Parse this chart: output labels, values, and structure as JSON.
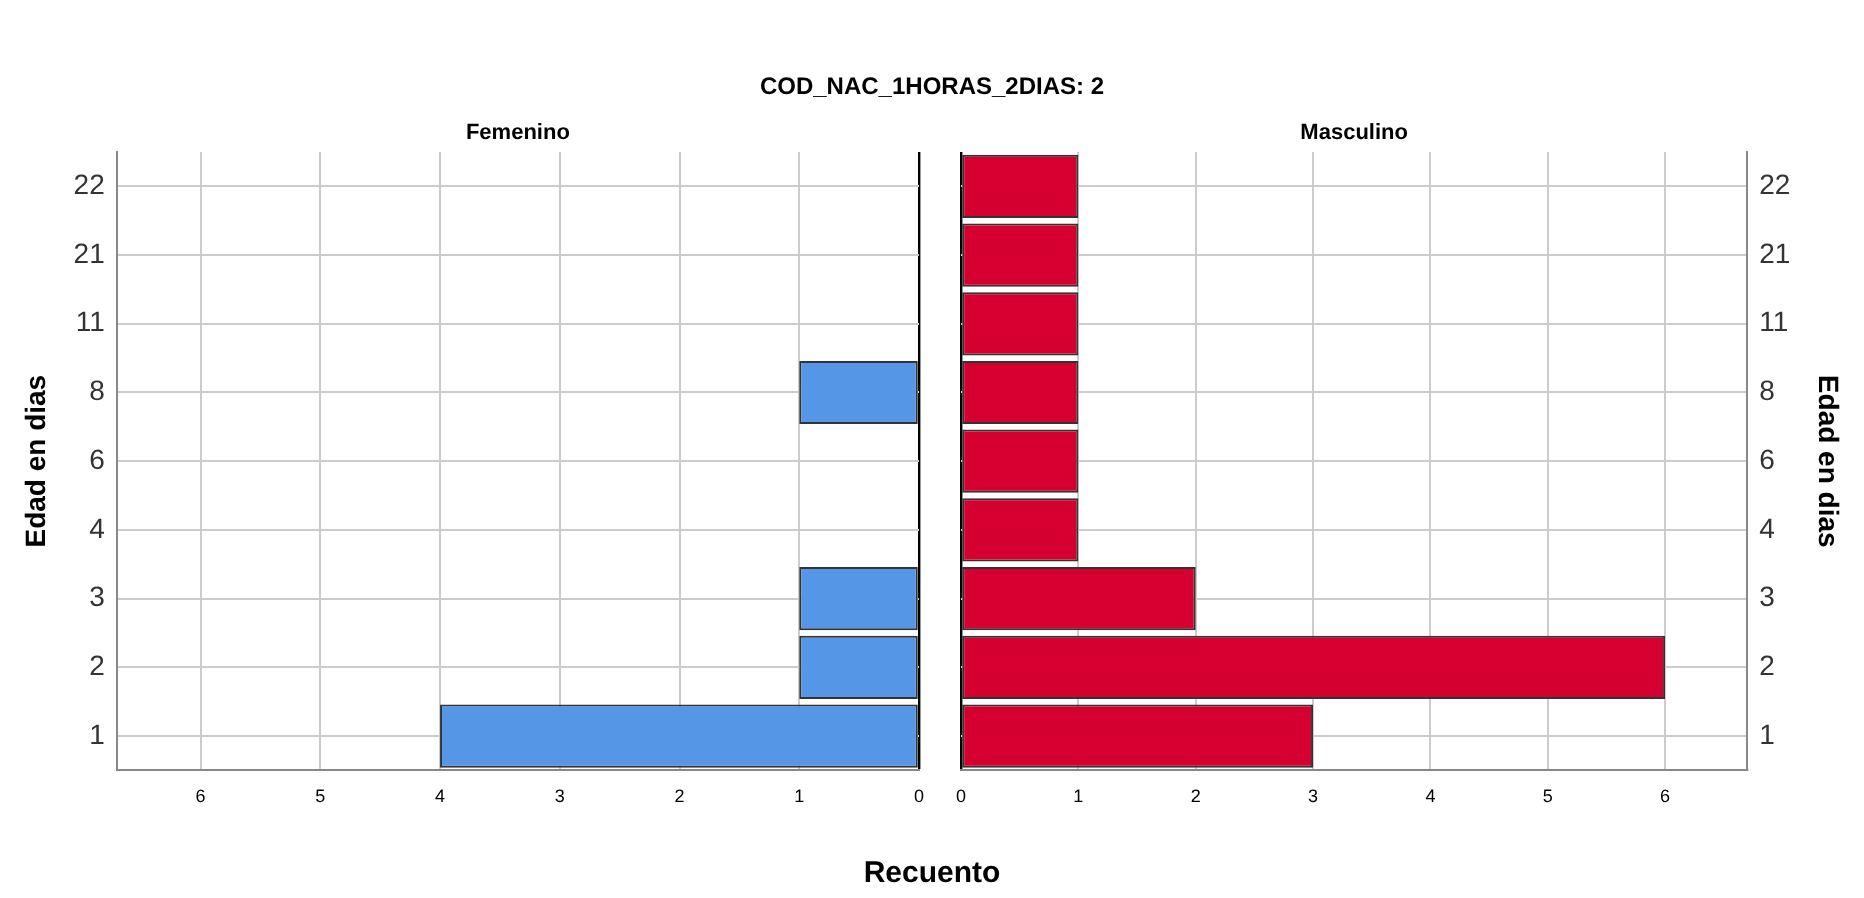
{
  "chart_data": [
    {
      "type": "bar",
      "orientation": "horizontal",
      "title": "COD_NAC_1HORAS_2DIAS: 2",
      "subtitle": "Femenino",
      "xlabel": "Recuento",
      "ylabel": "Edad en dias",
      "categories": [
        "22",
        "21",
        "11",
        "8",
        "6",
        "4",
        "3",
        "2",
        "1"
      ],
      "series": [
        {
          "color": "#5596e6",
          "values": [
            null,
            null,
            null,
            1,
            null,
            null,
            1,
            1,
            4
          ]
        }
      ],
      "xlim": [
        6.7,
        0
      ],
      "xticks": [
        6,
        5,
        4,
        3,
        2,
        1,
        0
      ],
      "grid": true,
      "legend": false
    },
    {
      "type": "bar",
      "orientation": "horizontal",
      "subtitle": "Masculino",
      "ylabel": "Edad en dias",
      "categories": [
        "22",
        "21",
        "11",
        "8",
        "6",
        "4",
        "3",
        "2",
        "1"
      ],
      "series": [
        {
          "color": "#d5002f",
          "values": [
            1,
            1,
            1,
            1,
            1,
            1,
            2,
            6,
            3
          ]
        }
      ],
      "xlim": [
        0,
        6.7
      ],
      "xticks": [
        0,
        1,
        2,
        3,
        4,
        5,
        6
      ],
      "grid": true,
      "legend": false
    }
  ]
}
